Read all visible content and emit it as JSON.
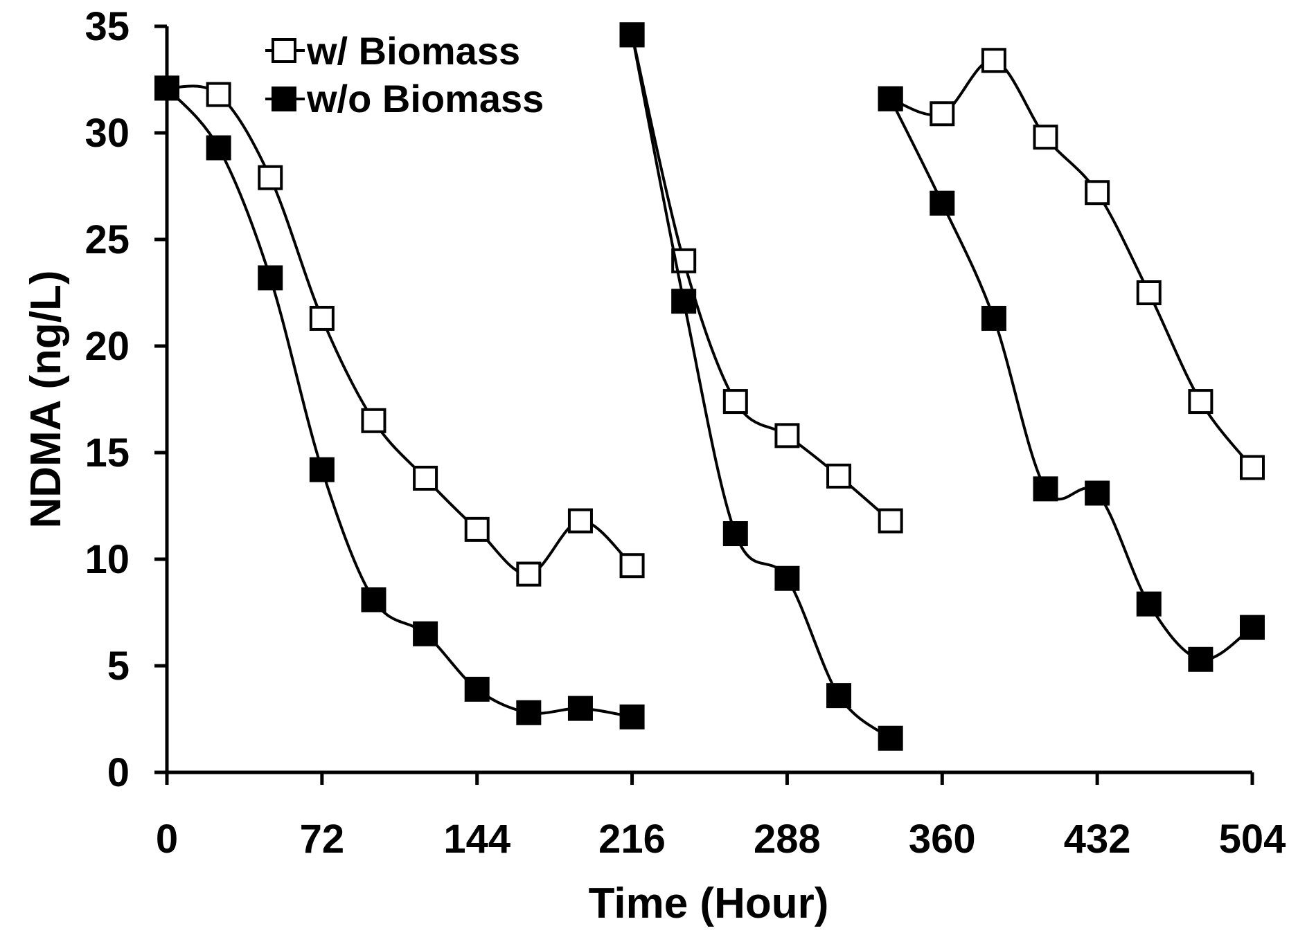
{
  "chart_data": {
    "type": "line",
    "title": "",
    "xlabel": "Time (Hour)",
    "ylabel": "NDMA (ng/L)",
    "xlim": [
      0,
      504
    ],
    "ylim": [
      0,
      35
    ],
    "xticks": [
      0,
      72,
      144,
      216,
      288,
      360,
      432,
      504
    ],
    "yticks": [
      0,
      5,
      10,
      15,
      20,
      25,
      30,
      35
    ],
    "grid": false,
    "legend_position": "top-left",
    "series": [
      {
        "name": "w/ Biomass",
        "marker": "open-square",
        "segments": [
          [
            [
              0,
              32.1
            ],
            [
              24,
              31.8
            ],
            [
              48,
              27.9
            ],
            [
              72,
              21.3
            ],
            [
              96,
              16.5
            ],
            [
              120,
              13.8
            ],
            [
              144,
              11.4
            ],
            [
              168,
              9.3
            ],
            [
              192,
              11.8
            ],
            [
              216,
              9.7
            ]
          ],
          [
            [
              216,
              34.6
            ],
            [
              240,
              24.0
            ],
            [
              264,
              17.4
            ],
            [
              288,
              15.8
            ],
            [
              312,
              13.9
            ],
            [
              336,
              11.8
            ]
          ],
          [
            [
              336,
              31.6
            ],
            [
              360,
              30.9
            ],
            [
              384,
              33.4
            ],
            [
              408,
              29.8
            ],
            [
              432,
              27.2
            ],
            [
              456,
              22.5
            ],
            [
              480,
              17.4
            ],
            [
              504,
              14.3
            ]
          ]
        ]
      },
      {
        "name": "w/o Biomass",
        "marker": "filled-square",
        "segments": [
          [
            [
              0,
              32.1
            ],
            [
              24,
              29.3
            ],
            [
              48,
              23.2
            ],
            [
              72,
              14.2
            ],
            [
              96,
              8.1
            ],
            [
              120,
              6.5
            ],
            [
              144,
              3.9
            ],
            [
              168,
              2.8
            ],
            [
              192,
              3.0
            ],
            [
              216,
              2.6
            ]
          ],
          [
            [
              216,
              34.6
            ],
            [
              240,
              22.1
            ],
            [
              264,
              11.2
            ],
            [
              288,
              9.1
            ],
            [
              312,
              3.6
            ],
            [
              336,
              1.6
            ]
          ],
          [
            [
              336,
              31.6
            ],
            [
              360,
              26.7
            ],
            [
              384,
              21.3
            ],
            [
              408,
              13.3
            ],
            [
              432,
              13.1
            ],
            [
              456,
              7.9
            ],
            [
              480,
              5.3
            ],
            [
              504,
              6.8
            ]
          ]
        ]
      }
    ]
  }
}
